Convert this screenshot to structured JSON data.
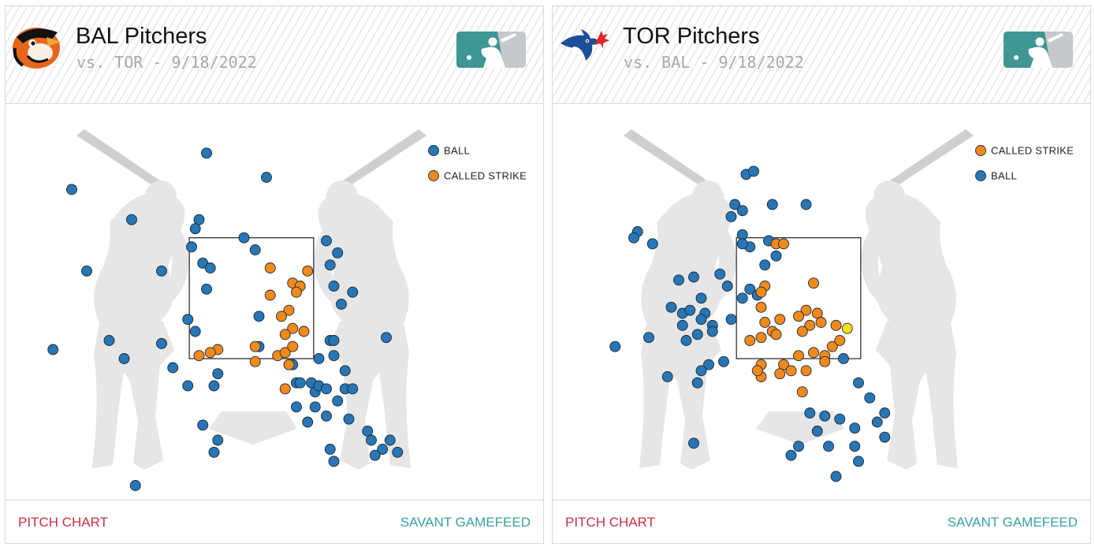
{
  "colors": {
    "ball": "#2876b5",
    "called_strike": "#f08a1e",
    "highlight": "#f5e11c"
  },
  "panels": [
    {
      "id": "bal",
      "title": "BAL Pitchers",
      "subtitle": "vs. TOR - 9/18/2022",
      "team_logo_icon": "orioles-bird-icon",
      "league_logo_icon": "mlb-logo-icon",
      "footer_left": "PITCH CHART",
      "footer_right": "SAVANT GAMEFEED",
      "chart_data": {
        "type": "scatter",
        "legend": [
          "BALL",
          "CALLED STRIKE"
        ],
        "legend_placement": "top-right",
        "strike_zone": "rectangle",
        "series": [
          {
            "name": "BALL",
            "color": "#2876b5",
            "points": [
              [
                -2.4,
                4.3
              ],
              [
                -1.6,
                3.8
              ],
              [
                -1.2,
                2.95
              ],
              [
                -1.2,
                1.75
              ],
              [
                -1.9,
                1.8
              ],
              [
                -0.6,
                4.9
              ],
              [
                0.2,
                4.5
              ],
              [
                -0.8,
                3.35
              ],
              [
                -0.7,
                3.8
              ],
              [
                -0.75,
                3.65
              ],
              [
                -0.65,
                3.08
              ],
              [
                -0.55,
                3.0
              ],
              [
                -0.6,
                2.65
              ],
              [
                -0.75,
                1.95
              ],
              [
                -1.05,
                1.35
              ],
              [
                -0.85,
                1.05
              ],
              [
                -0.45,
                1.25
              ],
              [
                -0.5,
                1.05
              ],
              [
                -0.85,
                2.15
              ],
              [
                -0.1,
                3.5
              ],
              [
                0.05,
                3.3
              ],
              [
                0.1,
                2.2
              ],
              [
                0.1,
                1.7
              ],
              [
                0.55,
                1.4
              ],
              [
                0.6,
                1.1
              ],
              [
                0.6,
                0.7
              ],
              [
                0.75,
                0.45
              ],
              [
                -0.65,
                0.4
              ],
              [
                -0.45,
                0.15
              ],
              [
                -0.5,
                -0.05
              ],
              [
                0.65,
                1.1
              ],
              [
                0.85,
                0.7
              ],
              [
                0.85,
                0.95
              ],
              [
                0.8,
                1.1
              ],
              [
                0.9,
                1.05
              ],
              [
                1.0,
                1.0
              ],
              [
                1.05,
                1.8
              ],
              [
                1.1,
                1.8
              ],
              [
                1.1,
                1.55
              ],
              [
                0.9,
                1.5
              ],
              [
                1.25,
                1.3
              ],
              [
                1.25,
                1.0
              ],
              [
                1.35,
                1.0
              ],
              [
                1.0,
                0.55
              ],
              [
                1.3,
                0.5
              ],
              [
                1.55,
                0.3
              ],
              [
                1.6,
                0.15
              ],
              [
                1.75,
                0.0
              ],
              [
                1.65,
                -0.1
              ],
              [
                1.95,
                -0.05
              ],
              [
                1.85,
                0.15
              ],
              [
                1.8,
                1.85
              ],
              [
                1.15,
                0.8
              ],
              [
                1.1,
                2.7
              ],
              [
                1.2,
                2.4
              ],
              [
                1.35,
                2.6
              ],
              [
                1.0,
                3.45
              ],
              [
                1.15,
                3.25
              ],
              [
                1.05,
                3.05
              ],
              [
                1.05,
                0.0
              ],
              [
                1.1,
                -0.2
              ],
              [
                -1.7,
                1.5
              ],
              [
                -2.2,
                2.95
              ],
              [
                -2.65,
                1.65
              ],
              [
                -1.55,
                -0.6
              ],
              [
                -0.25,
                -1.0
              ],
              [
                -0.35,
                -1.2
              ]
            ]
          },
          {
            "name": "CALLED STRIKE",
            "color": "#f08a1e",
            "points": [
              [
                0.25,
                3.0
              ],
              [
                0.25,
                2.55
              ],
              [
                0.55,
                2.75
              ],
              [
                0.65,
                2.7
              ],
              [
                0.6,
                2.6
              ],
              [
                0.5,
                2.3
              ],
              [
                0.4,
                2.2
              ],
              [
                0.55,
                2.0
              ],
              [
                0.45,
                1.9
              ],
              [
                0.05,
                1.7
              ],
              [
                -0.45,
                1.65
              ],
              [
                -0.55,
                1.6
              ],
              [
                -0.7,
                1.55
              ],
              [
                0.05,
                1.45
              ],
              [
                0.35,
                1.55
              ],
              [
                0.45,
                1.6
              ],
              [
                0.5,
                1.4
              ],
              [
                0.45,
                1.0
              ],
              [
                0.75,
                2.95
              ],
              [
                0.7,
                1.95
              ],
              [
                0.55,
                1.7
              ]
            ]
          }
        ]
      }
    },
    {
      "id": "tor",
      "title": "TOR Pitchers",
      "subtitle": "vs. BAL - 9/18/2022",
      "team_logo_icon": "blue-jays-icon",
      "league_logo_icon": "mlb-logo-icon",
      "footer_left": "PITCH CHART",
      "footer_right": "SAVANT GAMEFEED",
      "chart_data": {
        "type": "scatter",
        "legend": [
          "CALLED STRIKE",
          "BALL"
        ],
        "legend_placement": "top-right",
        "strike_zone": "rectangle",
        "series": [
          {
            "name": "BALL",
            "color": "#2876b5",
            "points": [
              [
                -0.7,
                4.55
              ],
              [
                -0.6,
                4.6
              ],
              [
                -0.35,
                4.05
              ],
              [
                0.1,
                4.05
              ],
              [
                -0.85,
                4.05
              ],
              [
                -0.9,
                3.85
              ],
              [
                -0.75,
                3.95
              ],
              [
                -2.15,
                3.6
              ],
              [
                -2.2,
                3.5
              ],
              [
                -1.95,
                3.4
              ],
              [
                -0.75,
                3.55
              ],
              [
                -0.65,
                3.35
              ],
              [
                -0.75,
                3.4
              ],
              [
                -0.4,
                3.45
              ],
              [
                -0.3,
                3.2
              ],
              [
                -0.45,
                3.05
              ],
              [
                -1.4,
                2.85
              ],
              [
                -1.6,
                2.8
              ],
              [
                -0.95,
                2.7
              ],
              [
                -1.05,
                2.9
              ],
              [
                -0.65,
                2.65
              ],
              [
                -0.55,
                2.55
              ],
              [
                -0.75,
                2.5
              ],
              [
                -1.3,
                2.5
              ],
              [
                -1.7,
                2.35
              ],
              [
                -1.55,
                2.25
              ],
              [
                -1.45,
                2.3
              ],
              [
                -1.25,
                2.25
              ],
              [
                -1.3,
                2.15
              ],
              [
                -0.9,
                2.15
              ],
              [
                -1.15,
                2.05
              ],
              [
                -1.55,
                2.05
              ],
              [
                -1.15,
                1.95
              ],
              [
                -1.35,
                1.9
              ],
              [
                -1.5,
                1.8
              ],
              [
                -2.45,
                1.7
              ],
              [
                -2.0,
                1.85
              ],
              [
                -1.2,
                1.4
              ],
              [
                -1.3,
                1.3
              ],
              [
                -1.0,
                1.45
              ],
              [
                -1.75,
                1.2
              ],
              [
                -1.35,
                1.1
              ],
              [
                0.6,
                1.5
              ],
              [
                0.8,
                1.1
              ],
              [
                0.55,
                0.5
              ],
              [
                0.35,
                0.55
              ],
              [
                0.25,
                0.3
              ],
              [
                0.15,
                0.6
              ],
              [
                0.75,
                0.35
              ],
              [
                1.05,
                0.45
              ],
              [
                1.15,
                0.6
              ],
              [
                1.15,
                0.2
              ],
              [
                0.95,
                0.85
              ],
              [
                0.75,
                0.05
              ],
              [
                0.4,
                0.05
              ],
              [
                0.0,
                0.05
              ],
              [
                -0.1,
                -0.1
              ],
              [
                0.8,
                -0.2
              ],
              [
                0.5,
                -0.45
              ],
              [
                -1.4,
                0.1
              ],
              [
                0.4,
                -1.4
              ]
            ]
          },
          {
            "name": "CALLED STRIKE",
            "color": "#f08a1e",
            "points": [
              [
                -0.3,
                3.4
              ],
              [
                -0.2,
                3.4
              ],
              [
                0.2,
                2.75
              ],
              [
                -0.45,
                2.7
              ],
              [
                -0.5,
                2.35
              ],
              [
                -0.5,
                2.6
              ],
              [
                0.1,
                2.3
              ],
              [
                0.25,
                2.25
              ],
              [
                0.3,
                2.1
              ],
              [
                0.15,
                2.05
              ],
              [
                0.0,
                2.2
              ],
              [
                -0.25,
                2.15
              ],
              [
                -0.45,
                2.1
              ],
              [
                -0.35,
                1.95
              ],
              [
                -0.5,
                1.85
              ],
              [
                -0.65,
                1.8
              ],
              [
                -0.3,
                1.9
              ],
              [
                0.05,
                1.95
              ],
              [
                0.5,
                2.05
              ],
              [
                0.35,
                1.55
              ],
              [
                0.2,
                1.6
              ],
              [
                0.45,
                1.7
              ],
              [
                -0.2,
                1.4
              ],
              [
                0.1,
                1.3
              ],
              [
                0.0,
                1.55
              ],
              [
                -0.1,
                1.3
              ],
              [
                -0.25,
                1.25
              ],
              [
                -0.5,
                1.4
              ],
              [
                0.55,
                1.8
              ],
              [
                0.35,
                1.45
              ],
              [
                -0.5,
                1.2
              ],
              [
                0.05,
                0.95
              ],
              [
                -0.55,
                1.3
              ]
            ]
          },
          {
            "name": "",
            "color": "#f5e11c",
            "points": [
              [
                0.65,
                2.0
              ]
            ]
          }
        ]
      }
    }
  ]
}
